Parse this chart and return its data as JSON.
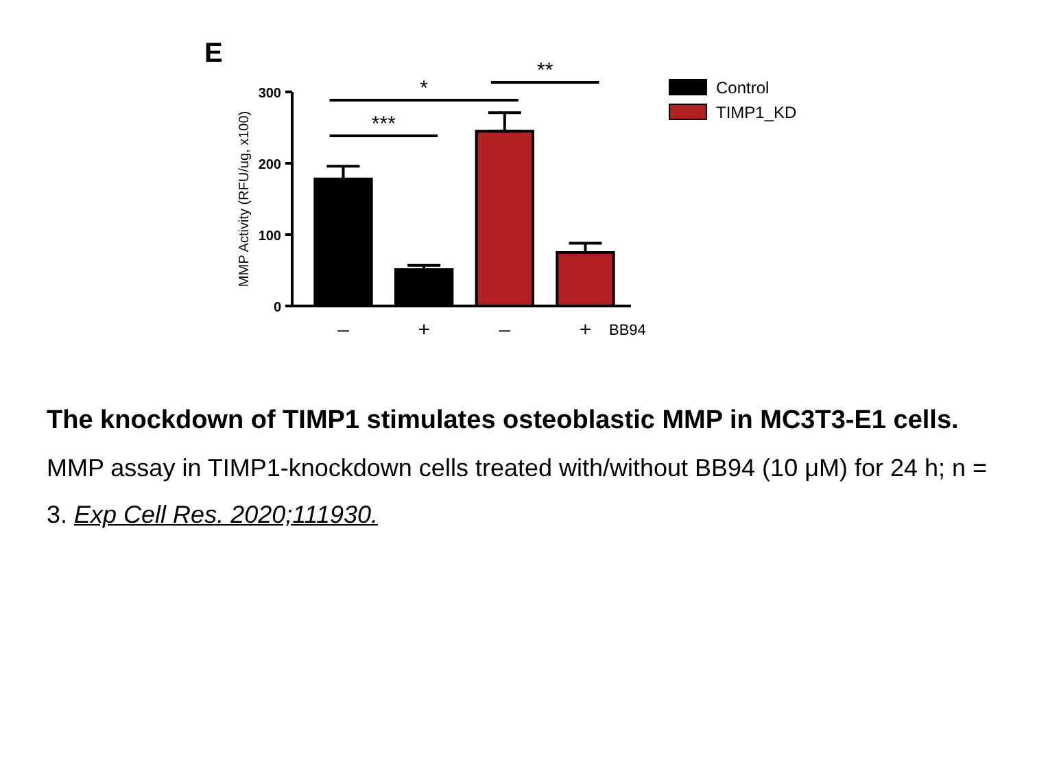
{
  "chart_data": {
    "type": "bar",
    "title": "The knockdown of TIMP1 stimulates osteoblastic MMP in MC3T3-E1 cells.",
    "subtitle": "MMP assay in TIMP1-knockdown cells treated with/without BB94 (10 μM) for 24 h; n = 3.",
    "ylabel": "MMP Activity (RFU/ug, x100)",
    "xlabel": "BB94",
    "categories": [
      "–",
      "+",
      "–",
      "+"
    ],
    "series": [
      {
        "name": "Control",
        "color": "#000000",
        "values": [
          178,
          51,
          null,
          null
        ],
        "errors": [
          [
            178,
            196
          ],
          [
            51,
            57
          ],
          null,
          null
        ]
      },
      {
        "name": "TIMP1_KD",
        "color": "#b41f22",
        "values": [
          null,
          null,
          245,
          75
        ],
        "errors": [
          null,
          null,
          [
            245,
            271
          ],
          [
            75,
            88
          ]
        ]
      }
    ],
    "ylim": [
      0,
      300
    ],
    "yticks": [
      0,
      100,
      200,
      300
    ],
    "legend": "top right",
    "annotations": [
      "E",
      "***",
      "*",
      "**",
      "Exp Cell Res. 2020;111930."
    ]
  }
}
